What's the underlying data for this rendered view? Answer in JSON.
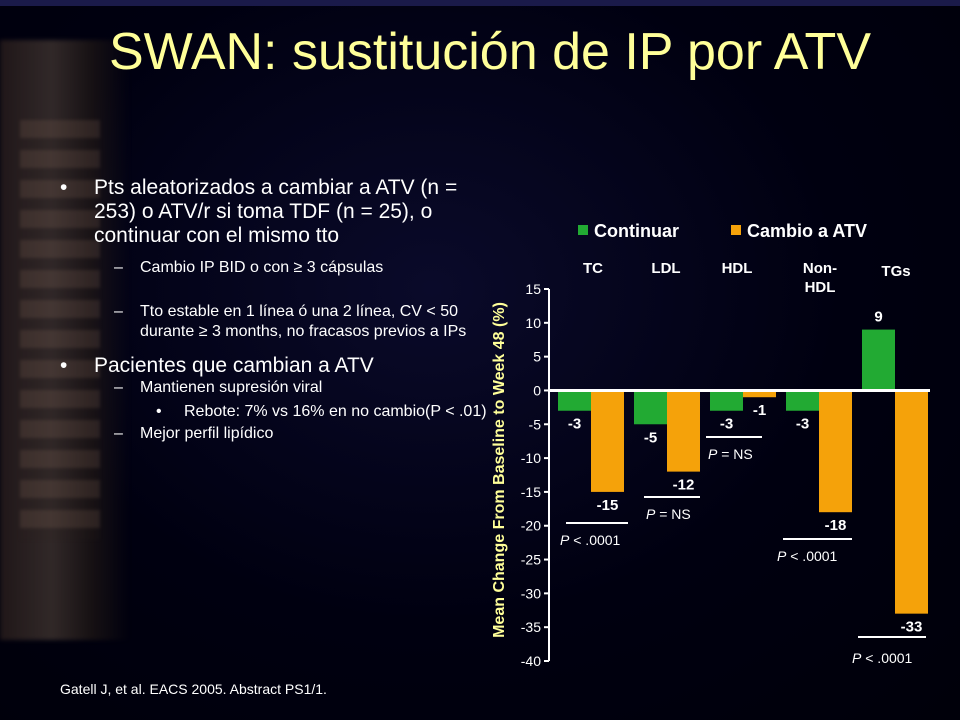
{
  "title": "SWAN: sustitución de IP por ATV",
  "bullets": {
    "b1": "Pts aleatorizados a cambiar a ATV (n = 253) o ATV/r si toma TDF (n = 25), o continuar con el mismo tto",
    "b1_sub1": "Cambio IP  BID o con  ≥ 3 cápsulas",
    "b1_sub2": "Tto estable en 1 línea ó una 2 línea, CV < 50 durante ≥ 3 months, no fracasos previos a IPs",
    "b2": "Pacientes que cambian a ATV",
    "b2_sub1": "Mantienen supresión viral",
    "b2_sub1_sub": "Rebote: 7% vs 16% en no cambio(P < .01)",
    "b2_sub2": "Mejor perfil lipídico",
    "dash": "–"
  },
  "citation": "Gatell J, et al. EACS 2005. Abstract PS1/1.",
  "chart_data": {
    "type": "bar",
    "categories": [
      "TC",
      "LDL",
      "HDL",
      "Non-HDL",
      "TGs"
    ],
    "series": [
      {
        "name": "Continuar",
        "color": "#22aa33",
        "values": [
          -3,
          -5,
          -3,
          -3,
          9
        ]
      },
      {
        "name": "Cambio a ATV",
        "color": "#f5a20a",
        "values": [
          -15,
          -12,
          -1,
          -18,
          -33
        ]
      }
    ],
    "ylabel": "Mean Change From Baseline to Week 48 (%)",
    "ylim": [
      -40,
      15
    ],
    "yticks": [
      15,
      10,
      5,
      0,
      -5,
      -10,
      -15,
      -20,
      -25,
      -30,
      -35,
      -40
    ],
    "legend_position": "top",
    "significance": [
      {
        "category": "TC",
        "p_prefix": "P",
        "p_text": "< .0001"
      },
      {
        "category": "LDL",
        "p_prefix": "P",
        "p_text": "= NS"
      },
      {
        "category": "HDL",
        "p_prefix": "P",
        "p_text": "= NS"
      },
      {
        "category": "Non-HDL",
        "p_prefix": "P",
        "p_text": "< .0001"
      },
      {
        "category": "TGs",
        "p_prefix": "P",
        "p_text": "< .0001"
      }
    ]
  }
}
